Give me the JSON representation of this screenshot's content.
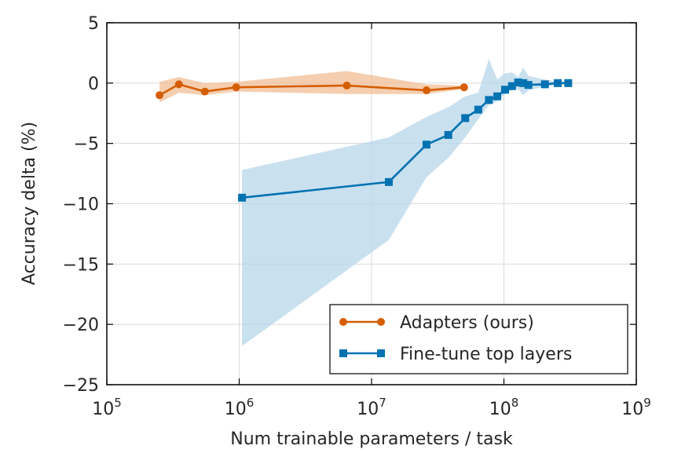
{
  "chart_data": {
    "type": "line",
    "xlabel": "Num trainable parameters / task",
    "ylabel": "Accuracy delta (%)",
    "xscale": "log",
    "xlim": [
      100000,
      1000000000
    ],
    "ylim": [
      -25,
      5
    ],
    "grid": true,
    "legend_position": "lower-right",
    "x_ticks": [
      {
        "value": 100000,
        "base": "10",
        "exp": "5"
      },
      {
        "value": 1000000,
        "base": "10",
        "exp": "6"
      },
      {
        "value": 10000000,
        "base": "10",
        "exp": "7"
      },
      {
        "value": 100000000,
        "base": "10",
        "exp": "8"
      },
      {
        "value": 1000000000,
        "base": "10",
        "exp": "9"
      }
    ],
    "y_ticks": [
      {
        "value": 5,
        "label": "5"
      },
      {
        "value": 0,
        "label": "0"
      },
      {
        "value": -5,
        "label": "−5"
      },
      {
        "value": -10,
        "label": "−10"
      },
      {
        "value": -15,
        "label": "−15"
      },
      {
        "value": -20,
        "label": "−20"
      },
      {
        "value": -25,
        "label": "−25"
      }
    ],
    "series": [
      {
        "name": "Adapters (ours)",
        "color": "#d55e00",
        "band_color": "#f1bd95",
        "marker": "circle",
        "x": [
          250000,
          350000,
          550000,
          950000,
          6500000,
          26000000,
          50000000
        ],
        "y": [
          -1.0,
          -0.1,
          -0.7,
          -0.35,
          -0.2,
          -0.6,
          -0.35
        ],
        "band_upper": [
          0.1,
          0.5,
          0.0,
          0.1,
          1.0,
          -0.1,
          -0.2
        ],
        "band_lower": [
          -1.6,
          -0.8,
          -1.0,
          -0.7,
          -0.9,
          -0.9,
          -0.5
        ]
      },
      {
        "name": "Fine-tune top layers",
        "color": "#0072b2",
        "band_color": "#b7d5ea",
        "marker": "square",
        "x": [
          1050000,
          13500000,
          26000000,
          38000000,
          51000000,
          64000000,
          77000000,
          89000000,
          102000000,
          115000000,
          128000000,
          140000000,
          153000000,
          204000000,
          255000000,
          306000000
        ],
        "y": [
          -9.5,
          -8.2,
          -5.1,
          -4.3,
          -2.9,
          -2.2,
          -1.4,
          -1.1,
          -0.55,
          -0.25,
          0.05,
          0.0,
          -0.15,
          -0.1,
          0.0,
          0.0
        ],
        "band_upper": [
          -7.2,
          -4.5,
          -2.8,
          -2.0,
          -1.1,
          -0.8,
          2.0,
          0.3,
          0.8,
          0.9,
          0.5,
          1.3,
          0.6,
          0.3,
          0.1,
          0.1
        ],
        "band_lower": [
          -21.8,
          -13.0,
          -7.8,
          -6.2,
          -4.5,
          -3.0,
          -1.8,
          -1.5,
          -0.9,
          -0.6,
          -0.5,
          -1.0,
          -0.6,
          -0.3,
          -0.1,
          -0.1
        ]
      }
    ]
  }
}
